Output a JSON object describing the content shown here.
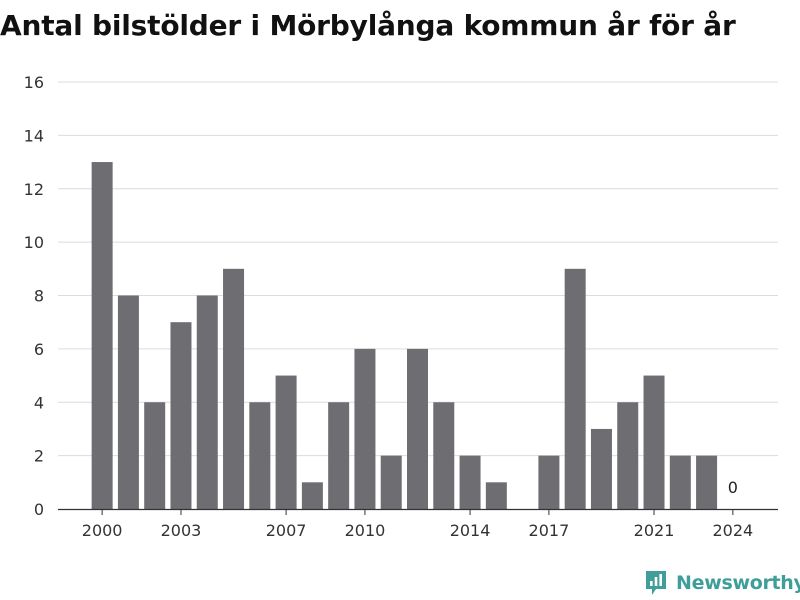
{
  "chart_data": {
    "type": "bar",
    "title": "Antal bilstölder i Mörbylånga kommun år för år",
    "x": [
      2000,
      2001,
      2002,
      2003,
      2004,
      2005,
      2006,
      2007,
      2008,
      2009,
      2010,
      2011,
      2012,
      2013,
      2014,
      2015,
      2016,
      2017,
      2018,
      2019,
      2020,
      2021,
      2022,
      2023,
      2024
    ],
    "values": [
      13,
      8,
      4,
      7,
      8,
      9,
      4,
      5,
      1,
      4,
      6,
      2,
      6,
      4,
      2,
      1,
      0,
      2,
      9,
      3,
      4,
      5,
      2,
      2,
      0
    ],
    "xticks": [
      "2000",
      "2003",
      "2007",
      "2010",
      "2014",
      "2017",
      "2021",
      "2024"
    ],
    "yticks": [
      "0",
      "2",
      "4",
      "6",
      "8",
      "10",
      "12",
      "14",
      "16"
    ],
    "ylim": [
      0,
      16
    ],
    "grid": true,
    "data_labels": [
      {
        "year": 2024,
        "text": "0"
      }
    ],
    "bar_color": "#6e6d72",
    "grid_color": "#dcdcdc"
  },
  "brand": {
    "name": "Newsworthy",
    "color": "#3f9d9a"
  }
}
